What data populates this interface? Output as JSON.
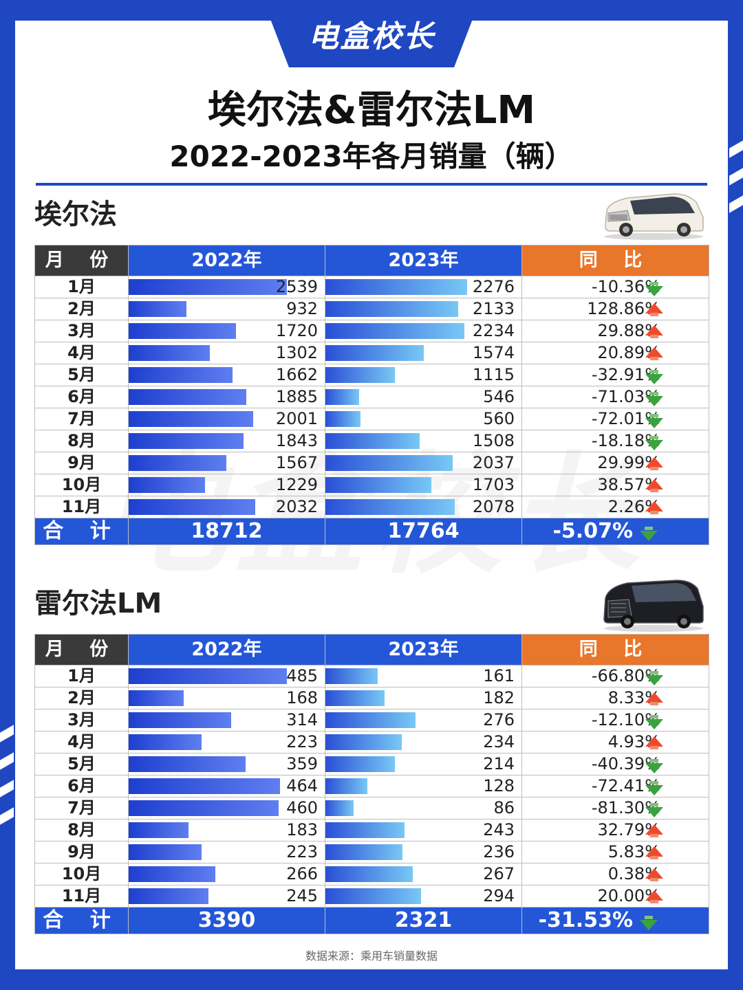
{
  "brand": "电盒校长",
  "title_line1": "埃尔法&雷尔法LM",
  "title_line2": "2022-2023年各月销量（辆）",
  "watermark": "电盒校长",
  "header": {
    "month": "月 份",
    "y2022": "2022年",
    "y2023": "2023年",
    "ratio": "同 比"
  },
  "total_label": "合 计",
  "colors": {
    "brand_blue": "#1f47c2",
    "header_blue": "#2456d8",
    "header_orange": "#e8762b",
    "header_dark": "#3a3a3a",
    "up": "#ef4b2a",
    "down": "#3aa23e"
  },
  "chart_data": [
    {
      "type": "table",
      "title": "埃尔法",
      "categories": [
        "1月",
        "2月",
        "3月",
        "4月",
        "5月",
        "6月",
        "7月",
        "8月",
        "9月",
        "10月",
        "11月"
      ],
      "series": [
        {
          "name": "2022年",
          "values": [
            2539,
            932,
            1720,
            1302,
            1662,
            1885,
            2001,
            1843,
            1567,
            1229,
            2032
          ]
        },
        {
          "name": "2023年",
          "values": [
            2276,
            2133,
            2234,
            1574,
            1115,
            546,
            560,
            1508,
            2037,
            1703,
            2078
          ]
        }
      ],
      "yoy": [
        "-10.36%",
        "128.86%",
        "29.88%",
        "20.89%",
        "-32.91%",
        "-71.03%",
        "-72.01%",
        "-18.18%",
        "29.99%",
        "38.57%",
        "2.26%"
      ],
      "yoy_dir": [
        "down",
        "up",
        "up",
        "up",
        "down",
        "down",
        "down",
        "down",
        "up",
        "up",
        "up"
      ],
      "totals": {
        "y2022": "18712",
        "y2023": "17764",
        "ratio": "-5.07%",
        "dir": "down"
      }
    },
    {
      "type": "table",
      "title": "雷尔法LM",
      "categories": [
        "1月",
        "2月",
        "3月",
        "4月",
        "5月",
        "6月",
        "7月",
        "8月",
        "9月",
        "10月",
        "11月"
      ],
      "series": [
        {
          "name": "2022年",
          "values": [
            485,
            168,
            314,
            223,
            359,
            464,
            460,
            183,
            223,
            266,
            245
          ]
        },
        {
          "name": "2023年",
          "values": [
            161,
            182,
            276,
            234,
            214,
            128,
            86,
            243,
            236,
            267,
            294
          ]
        }
      ],
      "yoy": [
        "-66.80%",
        "8.33%",
        "-12.10%",
        "4.93%",
        "-40.39%",
        "-72.41%",
        "-81.30%",
        "32.79%",
        "5.83%",
        "0.38%",
        "20.00%"
      ],
      "yoy_dir": [
        "down",
        "up",
        "down",
        "up",
        "down",
        "down",
        "down",
        "up",
        "up",
        "up",
        "up"
      ],
      "totals": {
        "y2022": "3390",
        "y2023": "2321",
        "ratio": "-31.53%",
        "dir": "down"
      }
    }
  ],
  "source": "数据来源：乘用车销量数据"
}
